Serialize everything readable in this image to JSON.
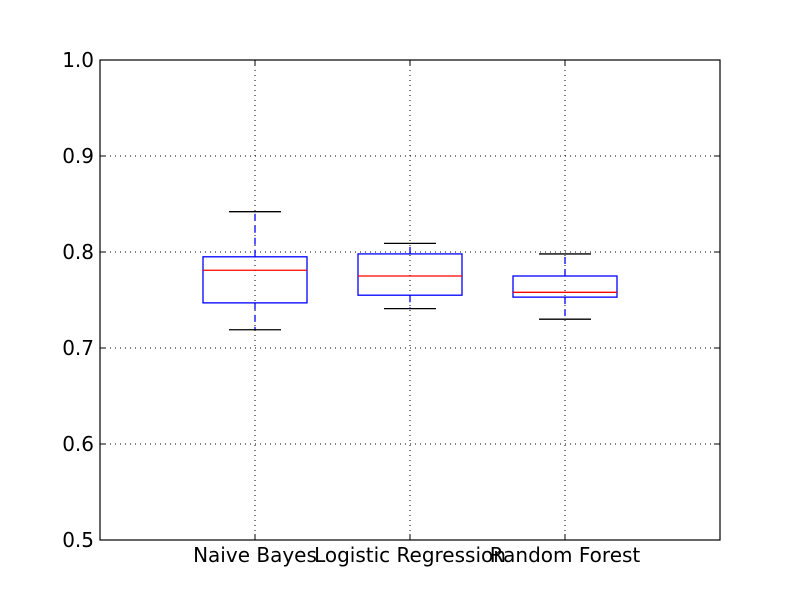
{
  "colors": {
    "box": "#0000ff",
    "median": "#ff0000",
    "whisker": "#0000ff",
    "cap": "#000000",
    "grid": "#000000"
  },
  "chart_data": {
    "type": "box",
    "title": "",
    "xlabel": "",
    "ylabel": "",
    "ylim": [
      0.5,
      1.0
    ],
    "yticks": [
      0.5,
      0.6,
      0.7,
      0.8,
      0.9,
      1.0
    ],
    "ytick_labels": [
      "0.5",
      "0.6",
      "0.7",
      "0.8",
      "0.9",
      "1.0"
    ],
    "grid": true,
    "categories": [
      "Naive Bayes",
      "Logistic Regression",
      "Random Forest"
    ],
    "series": [
      {
        "category": "Naive Bayes",
        "whisker_low": 0.719,
        "q1": 0.747,
        "median": 0.781,
        "q3": 0.795,
        "whisker_high": 0.842
      },
      {
        "category": "Logistic Regression",
        "whisker_low": 0.741,
        "q1": 0.755,
        "median": 0.775,
        "q3": 0.798,
        "whisker_high": 0.809
      },
      {
        "category": "Random Forest",
        "whisker_low": 0.73,
        "q1": 0.753,
        "median": 0.758,
        "q3": 0.775,
        "whisker_high": 0.798
      }
    ]
  }
}
